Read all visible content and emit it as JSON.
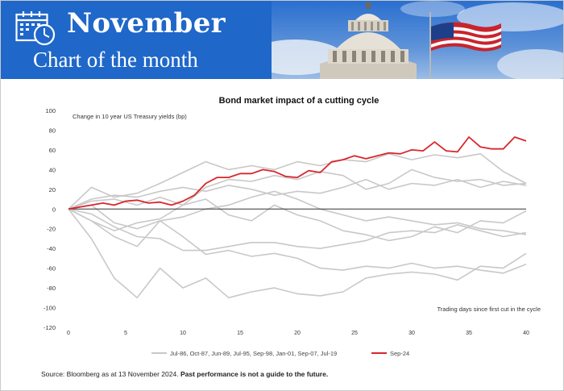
{
  "banner": {
    "title": "November",
    "subtitle": "Chart of the month",
    "background_color": "#1f67c9",
    "icon": "calendar-clock-icon"
  },
  "footer": {
    "source_text": "Source: Bloomberg as at 13 November 2024.",
    "disclaimer": "Past performance is not a guide to the future."
  },
  "chart_data": {
    "type": "line",
    "title": "Bond market impact of a cutting cycle",
    "ylabel": "Change in 10 year US Treasury yields (bp)",
    "xlabel": "Trading days since first cut in the cycle",
    "xlim": [
      0,
      40
    ],
    "ylim": [
      -120,
      100
    ],
    "x_ticks": [
      0,
      5,
      10,
      15,
      20,
      25,
      30,
      35,
      40
    ],
    "y_ticks": [
      100,
      80,
      60,
      40,
      20,
      0,
      -20,
      -40,
      -60,
      -80,
      -100,
      -120
    ],
    "grid": false,
    "legend_position": "bottom",
    "legend": [
      {
        "label": "Jul-86, Oct-87, Jun-89, Jul-95, Sep-98, Jan-01, Sep-07, Jul-19",
        "color": "#c8c8c8"
      },
      {
        "label": "Sep-24",
        "color": "#d9262c"
      }
    ],
    "highlight_series": {
      "name": "Sep-24",
      "color": "#d9262c",
      "x": [
        0,
        1,
        2,
        3,
        4,
        5,
        6,
        7,
        8,
        9,
        10,
        11,
        12,
        13,
        14,
        15,
        16,
        17,
        18,
        19,
        20,
        21,
        22,
        23,
        24,
        25,
        26,
        27,
        28,
        29,
        30,
        31,
        32,
        33,
        34,
        35,
        36,
        37,
        38,
        39,
        40
      ],
      "values": [
        0,
        2,
        4,
        6,
        4,
        8,
        9,
        6,
        7,
        4,
        8,
        14,
        26,
        32,
        32,
        36,
        36,
        40,
        38,
        33,
        32,
        39,
        37,
        48,
        50,
        54,
        51,
        54,
        57,
        56,
        60,
        59,
        68,
        59,
        58,
        73,
        63,
        61,
        61,
        73,
        69
      ]
    },
    "background_series": {
      "color": "#c8c8c8",
      "x": [
        0,
        2,
        4,
        6,
        8,
        10,
        12,
        14,
        16,
        18,
        20,
        22,
        24,
        26,
        28,
        30,
        32,
        34,
        36,
        38,
        40
      ],
      "series": [
        {
          "values": [
            0,
            22,
            12,
            16,
            26,
            37,
            48,
            40,
            44,
            40,
            48,
            44,
            50,
            48,
            56,
            50,
            55,
            52,
            56,
            38,
            26
          ]
        },
        {
          "values": [
            0,
            -12,
            -28,
            -38,
            -12,
            -28,
            -46,
            -42,
            -48,
            -45,
            -50,
            -60,
            -62,
            -58,
            -60,
            -55,
            -60,
            -58,
            -62,
            -65,
            -56
          ]
        },
        {
          "values": [
            0,
            -30,
            -70,
            -90,
            -60,
            -80,
            -70,
            -90,
            -84,
            -80,
            -86,
            -88,
            -84,
            -70,
            -66,
            -64,
            -66,
            -72,
            -58,
            -60,
            -45
          ]
        },
        {
          "values": [
            0,
            8,
            10,
            4,
            12,
            4,
            22,
            30,
            28,
            34,
            30,
            38,
            34,
            20,
            26,
            40,
            32,
            28,
            30,
            24,
            26
          ]
        },
        {
          "values": [
            0,
            -5,
            -18,
            -28,
            -30,
            -42,
            -42,
            -38,
            -34,
            -34,
            -38,
            -40,
            -36,
            -32,
            -24,
            -22,
            -24,
            -16,
            -22,
            -28,
            -24
          ]
        },
        {
          "values": [
            0,
            4,
            -14,
            -20,
            -12,
            -8,
            0,
            4,
            12,
            18,
            10,
            0,
            -6,
            -12,
            -8,
            -12,
            -16,
            -14,
            -20,
            -22,
            -26
          ]
        },
        {
          "values": [
            0,
            -12,
            -22,
            -14,
            -10,
            4,
            10,
            -6,
            -12,
            4,
            -6,
            -12,
            -22,
            -26,
            -32,
            -28,
            -18,
            -24,
            -12,
            -14,
            -2
          ]
        },
        {
          "values": [
            0,
            10,
            14,
            12,
            18,
            22,
            18,
            24,
            20,
            14,
            18,
            16,
            22,
            30,
            20,
            26,
            24,
            30,
            22,
            28,
            24
          ]
        }
      ]
    }
  }
}
